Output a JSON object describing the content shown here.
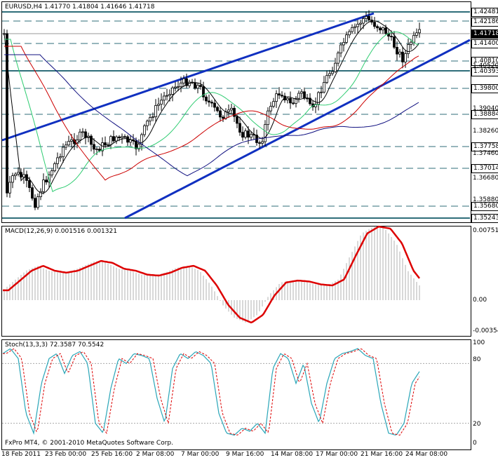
{
  "main": {
    "header": "EURUSD,H4  1.41770 1.41804 1.41646 1.41718",
    "levels": [
      "1.42481",
      "1.42186",
      "1.41718",
      "1.41400",
      "1.40810",
      "1.40520",
      "1.40393",
      "1.39800",
      "1.39040",
      "1.38884",
      "1.38260",
      "1.37758",
      "1.37460",
      "1.37014",
      "1.36680",
      "1.35880",
      "1.35680",
      "1.35243",
      "1.35100"
    ],
    "current_price": "1.41718"
  },
  "macd": {
    "header": "MACD(12,26,9) 0.001516 0.001321",
    "levels": [
      "0.00751",
      "0.00",
      "-0.00354"
    ],
    "values": [
      0.001,
      0.002,
      0.003,
      0.0035,
      0.003,
      0.0028,
      0.003,
      0.0035,
      0.004,
      0.0038,
      0.0032,
      0.003,
      0.0026,
      0.0025,
      0.0028,
      0.0033,
      0.0035,
      0.003,
      0.0015,
      -0.0005,
      -0.0018,
      -0.0023,
      -0.0015,
      0.0005,
      0.0018,
      0.002,
      0.0019,
      0.0016,
      0.0015,
      0.0021,
      0.0045,
      0.0068,
      0.0075,
      0.0073,
      0.0058,
      0.003,
      0.0015
    ]
  },
  "stoch": {
    "header": "Stoch(13,3,3) 72.3587 70.5542",
    "levels": [
      "100",
      "80",
      "20",
      "0"
    ]
  },
  "x_axis": [
    "18 Feb 2011",
    "23 Feb 00:00",
    "25 Feb 16:00",
    "2 Mar 08:00",
    "7 Mar 00:00",
    "9 Mar 16:00",
    "14 Mar 08:00",
    "17 Mar 00:00",
    "21 Mar 16:00",
    "24 Mar 08:00"
  ],
  "footer": "FxPro MT4, © 2001-2010 MetaQuotes Software Corp."
}
